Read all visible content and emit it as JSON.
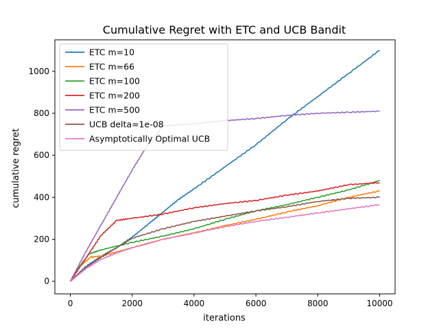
{
  "chart_data": {
    "type": "line",
    "title": "Cumulative Regret with ETC and UCB Bandit",
    "xlabel": "iterations",
    "ylabel": "cumulative regret",
    "xlim": [
      -500,
      10500
    ],
    "ylim": [
      -60,
      1150
    ],
    "xticks": [
      0,
      2000,
      4000,
      6000,
      8000,
      10000
    ],
    "xtick_labels": [
      "0",
      "2000",
      "4000",
      "6000",
      "8000",
      "10000"
    ],
    "yticks": [
      0,
      200,
      400,
      600,
      800,
      1000
    ],
    "ytick_labels": [
      "0",
      "200",
      "400",
      "600",
      "800",
      "1000"
    ],
    "grid": false,
    "legend_position": "upper-left",
    "series": [
      {
        "name": "ETC m=10",
        "color": "#1f77b4",
        "x": [
          0,
          500,
          1000,
          1500,
          2000,
          2500,
          3000,
          3500,
          4000,
          5000,
          6000,
          7000,
          8000,
          9000,
          10000
        ],
        "y": [
          0,
          70,
          120,
          160,
          210,
          270,
          330,
          390,
          440,
          545,
          650,
          770,
          880,
          990,
          1100
        ]
      },
      {
        "name": "ETC m=66",
        "color": "#ff7f0e",
        "x": [
          0,
          300,
          660,
          1000,
          2000,
          3000,
          4000,
          5000,
          6000,
          7000,
          8000,
          9000,
          10000
        ],
        "y": [
          0,
          70,
          115,
          120,
          160,
          200,
          230,
          265,
          295,
          330,
          360,
          400,
          430
        ]
      },
      {
        "name": "ETC m=100",
        "color": "#2ca02c",
        "x": [
          0,
          300,
          600,
          1000,
          2000,
          3000,
          4000,
          5000,
          6000,
          7000,
          8000,
          9000,
          10000
        ],
        "y": [
          0,
          70,
          130,
          150,
          185,
          215,
          250,
          295,
          335,
          365,
          400,
          435,
          480
        ]
      },
      {
        "name": "ETC m=200",
        "color": "#d62728",
        "x": [
          0,
          500,
          1000,
          1500,
          2000,
          3000,
          4000,
          5000,
          6000,
          7000,
          8000,
          9000,
          10000
        ],
        "y": [
          0,
          110,
          220,
          290,
          300,
          320,
          350,
          370,
          385,
          410,
          430,
          460,
          470
        ]
      },
      {
        "name": "ETC m=500",
        "color": "#9467bd",
        "x": [
          0,
          500,
          1000,
          1500,
          2000,
          2500,
          3000,
          3500,
          4000,
          5000,
          6000,
          7000,
          8000,
          9000,
          10000
        ],
        "y": [
          0,
          140,
          270,
          400,
          530,
          650,
          740,
          745,
          750,
          765,
          775,
          790,
          800,
          805,
          810
        ]
      },
      {
        "name": "UCB delta=1e-08",
        "color": "#8c564b",
        "x": [
          0,
          500,
          1000,
          1500,
          2000,
          3000,
          4000,
          5000,
          6000,
          7000,
          8000,
          9000,
          10000
        ],
        "y": [
          0,
          65,
          115,
          160,
          205,
          250,
          285,
          310,
          335,
          355,
          380,
          395,
          400
        ]
      },
      {
        "name": "Asymptotically Optimal UCB",
        "color": "#e377c2",
        "x": [
          0,
          500,
          1000,
          1500,
          2000,
          3000,
          4000,
          5000,
          6000,
          7000,
          8000,
          9000,
          10000
        ],
        "y": [
          0,
          60,
          105,
          135,
          160,
          200,
          230,
          260,
          285,
          305,
          325,
          345,
          365
        ]
      }
    ]
  }
}
